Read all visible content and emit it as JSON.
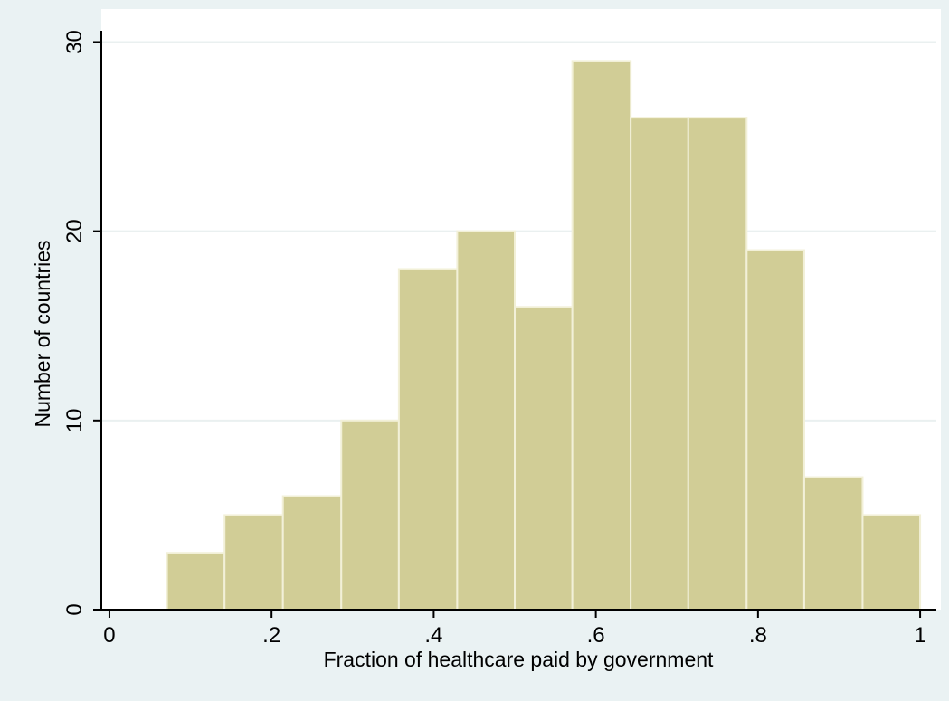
{
  "colors": {
    "page_background": "#eaf2f3",
    "plot_background": "#ffffff",
    "bar_fill": "#d1cd96",
    "bar_stroke": "#f2f0d8",
    "gridline": "#eaf0f0",
    "axis": "#000000"
  },
  "chart_data": {
    "type": "bar",
    "title": "",
    "xlabel": "Fraction of healthcare paid by government",
    "ylabel": "Number of countries",
    "xlim": [
      -0.01,
      1.02
    ],
    "ylim": [
      0,
      30.5
    ],
    "grid": true,
    "legend": "none",
    "xticks": [
      0,
      0.2,
      0.4,
      0.6,
      0.8,
      1
    ],
    "xtick_labels": [
      "0",
      ".2",
      ".4",
      ".6",
      ".8",
      "1"
    ],
    "yticks": [
      0,
      10,
      20,
      30
    ],
    "ytick_labels": [
      "0",
      "10",
      "20",
      "30"
    ],
    "bin_edges": [
      0.071,
      0.142,
      0.214,
      0.286,
      0.357,
      0.429,
      0.5,
      0.571,
      0.643,
      0.714,
      0.786,
      0.857,
      0.929,
      1.0
    ],
    "values": [
      3,
      5,
      6,
      10,
      18,
      20,
      16,
      29,
      26,
      26,
      19,
      7,
      5
    ]
  }
}
